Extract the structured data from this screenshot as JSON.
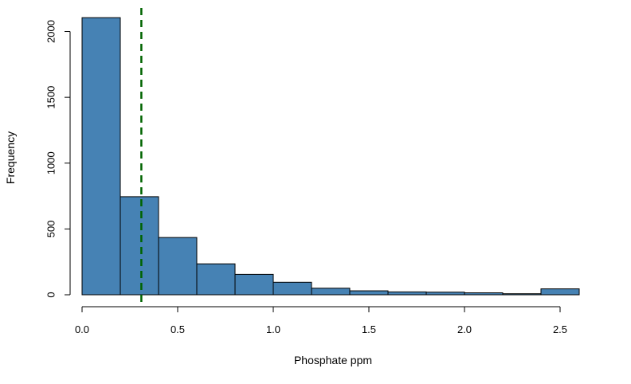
{
  "chart_data": {
    "type": "histogram",
    "title": "",
    "xlabel": "Phosphate ppm",
    "ylabel": "Frequency",
    "xlim": [
      0,
      2.6
    ],
    "ylim": [
      0,
      2100
    ],
    "grid": false,
    "legend": "none",
    "bar_color": "#4682B4",
    "bar_edge_color": "#000000",
    "bin_edges": [
      0.0,
      0.2,
      0.4,
      0.6,
      0.8,
      1.0,
      1.2,
      1.4,
      1.6,
      1.8,
      2.0,
      2.2,
      2.4,
      2.6
    ],
    "values": [
      2105,
      745,
      435,
      235,
      155,
      95,
      50,
      30,
      22,
      20,
      15,
      8,
      45
    ],
    "x_ticks": [
      0.0,
      0.5,
      1.0,
      1.5,
      2.0,
      2.5
    ],
    "x_tick_labels": [
      "0.0",
      "0.5",
      "1.0",
      "1.5",
      "2.0",
      "2.5"
    ],
    "y_ticks": [
      0,
      500,
      1000,
      1500,
      2000
    ],
    "y_tick_labels": [
      "0",
      "500",
      "1000",
      "1500",
      "2000"
    ],
    "reference_line": {
      "x": 0.31,
      "color": "#006400",
      "style": "dashed"
    }
  }
}
